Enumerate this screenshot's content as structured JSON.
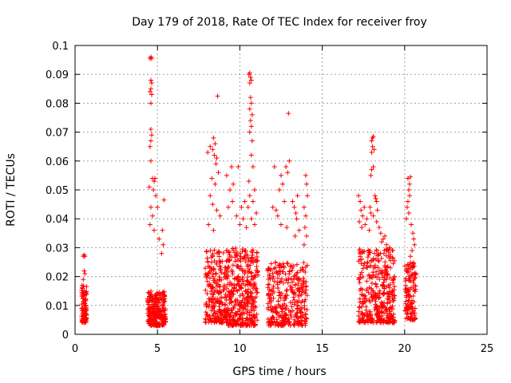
{
  "chart_data": {
    "type": "scatter",
    "title": "Day 179 of 2018, Rate Of TEC Index for receiver froy",
    "xlabel": "GPS time / hours",
    "ylabel": "ROTI / TECUs",
    "xlim": [
      0,
      25
    ],
    "ylim": [
      0,
      0.1
    ],
    "xticks": [
      0,
      5,
      10,
      15,
      20,
      25
    ],
    "yticks": [
      0,
      0.01,
      0.02,
      0.03,
      0.04,
      0.05,
      0.06,
      0.07,
      0.08,
      0.09,
      0.1
    ],
    "xtick_labels": [
      "0",
      "5",
      "10",
      "15",
      "20",
      "25"
    ],
    "ytick_labels": [
      "0",
      "0.01",
      "0.02",
      "0.03",
      "0.04",
      "0.05",
      "0.06",
      "0.07",
      "0.08",
      "0.09",
      "0.1"
    ],
    "grid": true,
    "marker": "+",
    "color": "#ff0000",
    "clusters": [
      {
        "x_range": [
          0.4,
          0.7
        ],
        "y_range": [
          0.004,
          0.017
        ],
        "count": 90
      },
      {
        "x_range": [
          4.4,
          5.5
        ],
        "y_range": [
          0.003,
          0.015
        ],
        "count": 240
      },
      {
        "x_range": [
          7.9,
          9.3
        ],
        "y_range": [
          0.004,
          0.03
        ],
        "count": 260
      },
      {
        "x_range": [
          9.3,
          11.1
        ],
        "y_range": [
          0.003,
          0.03
        ],
        "count": 360
      },
      {
        "x_range": [
          11.7,
          14.1
        ],
        "y_range": [
          0.003,
          0.025
        ],
        "count": 340
      },
      {
        "x_range": [
          17.2,
          19.4
        ],
        "y_range": [
          0.004,
          0.03
        ],
        "count": 380
      },
      {
        "x_range": [
          20.0,
          20.7
        ],
        "y_range": [
          0.005,
          0.025
        ],
        "count": 120
      }
    ],
    "points": [
      [
        0.5,
        0.027
      ],
      [
        0.55,
        0.0275
      ],
      [
        0.6,
        0.027
      ],
      [
        0.55,
        0.022
      ],
      [
        0.6,
        0.021
      ],
      [
        0.5,
        0.019
      ],
      [
        4.55,
        0.0955
      ],
      [
        4.6,
        0.096
      ],
      [
        4.65,
        0.0955
      ],
      [
        4.6,
        0.088
      ],
      [
        4.65,
        0.087
      ],
      [
        4.6,
        0.085
      ],
      [
        4.55,
        0.084
      ],
      [
        4.65,
        0.083
      ],
      [
        4.6,
        0.08
      ],
      [
        4.6,
        0.071
      ],
      [
        4.65,
        0.069
      ],
      [
        4.6,
        0.067
      ],
      [
        4.55,
        0.065
      ],
      [
        4.6,
        0.06
      ],
      [
        4.5,
        0.051
      ],
      [
        4.7,
        0.054
      ],
      [
        4.8,
        0.053
      ],
      [
        4.85,
        0.054
      ],
      [
        4.75,
        0.05
      ],
      [
        4.9,
        0.048
      ],
      [
        5.0,
        0.044
      ],
      [
        5.4,
        0.0465
      ],
      [
        5.3,
        0.036
      ],
      [
        5.35,
        0.031
      ],
      [
        4.6,
        0.044
      ],
      [
        4.7,
        0.041
      ],
      [
        4.55,
        0.038
      ],
      [
        4.8,
        0.036
      ],
      [
        5.1,
        0.033
      ],
      [
        5.25,
        0.028
      ],
      [
        8.05,
        0.063
      ],
      [
        8.2,
        0.065
      ],
      [
        8.35,
        0.064
      ],
      [
        8.4,
        0.068
      ],
      [
        8.5,
        0.066
      ],
      [
        8.55,
        0.059
      ],
      [
        8.45,
        0.062
      ],
      [
        8.6,
        0.061
      ],
      [
        8.65,
        0.0825
      ],
      [
        8.7,
        0.056
      ],
      [
        8.3,
        0.054
      ],
      [
        8.5,
        0.052
      ],
      [
        8.2,
        0.048
      ],
      [
        8.35,
        0.045
      ],
      [
        8.6,
        0.043
      ],
      [
        8.8,
        0.041
      ],
      [
        8.1,
        0.038
      ],
      [
        8.4,
        0.036
      ],
      [
        9.2,
        0.055
      ],
      [
        9.5,
        0.058
      ],
      [
        9.6,
        0.052
      ],
      [
        9.4,
        0.05
      ],
      [
        9.55,
        0.046
      ],
      [
        9.3,
        0.044
      ],
      [
        9.9,
        0.058
      ],
      [
        9.8,
        0.041
      ],
      [
        10.1,
        0.044
      ],
      [
        10.3,
        0.046
      ],
      [
        10.2,
        0.04
      ],
      [
        10.0,
        0.038
      ],
      [
        10.55,
        0.09
      ],
      [
        10.6,
        0.0905
      ],
      [
        10.65,
        0.089
      ],
      [
        10.7,
        0.088
      ],
      [
        10.6,
        0.087
      ],
      [
        10.65,
        0.082
      ],
      [
        10.7,
        0.08
      ],
      [
        10.6,
        0.078
      ],
      [
        10.75,
        0.076
      ],
      [
        10.65,
        0.074
      ],
      [
        10.7,
        0.072
      ],
      [
        10.6,
        0.07
      ],
      [
        10.75,
        0.067
      ],
      [
        10.7,
        0.062
      ],
      [
        10.8,
        0.058
      ],
      [
        10.55,
        0.053
      ],
      [
        10.9,
        0.05
      ],
      [
        10.6,
        0.048
      ],
      [
        10.8,
        0.046
      ],
      [
        10.5,
        0.044
      ],
      [
        11.0,
        0.042
      ],
      [
        10.7,
        0.04
      ],
      [
        10.9,
        0.038
      ],
      [
        10.4,
        0.037
      ],
      [
        12.0,
        0.044
      ],
      [
        12.2,
        0.043
      ],
      [
        12.1,
        0.058
      ],
      [
        12.5,
        0.055
      ],
      [
        12.6,
        0.052
      ],
      [
        12.8,
        0.058
      ],
      [
        12.9,
        0.056
      ],
      [
        13.0,
        0.06
      ],
      [
        12.95,
        0.0765
      ],
      [
        12.4,
        0.05
      ],
      [
        12.7,
        0.046
      ],
      [
        12.3,
        0.041
      ],
      [
        12.5,
        0.038
      ],
      [
        12.85,
        0.037
      ],
      [
        13.2,
        0.046
      ],
      [
        13.3,
        0.044
      ],
      [
        13.4,
        0.042
      ],
      [
        13.5,
        0.048
      ],
      [
        13.45,
        0.04
      ],
      [
        13.6,
        0.036
      ],
      [
        13.35,
        0.034
      ],
      [
        14.0,
        0.055
      ],
      [
        14.05,
        0.052
      ],
      [
        14.1,
        0.048
      ],
      [
        13.9,
        0.044
      ],
      [
        14.0,
        0.041
      ],
      [
        13.95,
        0.037
      ],
      [
        14.05,
        0.034
      ],
      [
        13.9,
        0.031
      ],
      [
        17.2,
        0.048
      ],
      [
        17.3,
        0.046
      ],
      [
        17.35,
        0.043
      ],
      [
        17.45,
        0.041
      ],
      [
        17.25,
        0.039
      ],
      [
        17.4,
        0.037
      ],
      [
        17.55,
        0.044
      ],
      [
        17.7,
        0.04
      ],
      [
        17.6,
        0.038
      ],
      [
        17.85,
        0.036
      ],
      [
        17.9,
        0.044
      ],
      [
        17.95,
        0.042
      ],
      [
        17.95,
        0.055
      ],
      [
        18.0,
        0.057
      ],
      [
        18.1,
        0.058
      ],
      [
        18.0,
        0.063
      ],
      [
        18.05,
        0.065
      ],
      [
        18.0,
        0.067
      ],
      [
        18.05,
        0.068
      ],
      [
        18.1,
        0.0685
      ],
      [
        18.15,
        0.064
      ],
      [
        18.2,
        0.048
      ],
      [
        18.25,
        0.047
      ],
      [
        18.3,
        0.046
      ],
      [
        18.35,
        0.043
      ],
      [
        18.1,
        0.041
      ],
      [
        18.3,
        0.039
      ],
      [
        18.45,
        0.037
      ],
      [
        18.55,
        0.035
      ],
      [
        18.7,
        0.033
      ],
      [
        18.9,
        0.031
      ],
      [
        19.1,
        0.03
      ],
      [
        19.25,
        0.029
      ],
      [
        18.6,
        0.032
      ],
      [
        18.8,
        0.034
      ],
      [
        20.1,
        0.04
      ],
      [
        20.15,
        0.044
      ],
      [
        20.2,
        0.046
      ],
      [
        20.25,
        0.05
      ],
      [
        20.3,
        0.052
      ],
      [
        20.2,
        0.054
      ],
      [
        20.35,
        0.0545
      ],
      [
        20.3,
        0.048
      ],
      [
        20.25,
        0.042
      ],
      [
        20.4,
        0.038
      ],
      [
        20.5,
        0.035
      ],
      [
        20.55,
        0.033
      ],
      [
        20.6,
        0.031
      ],
      [
        20.45,
        0.029
      ],
      [
        20.35,
        0.027
      ]
    ]
  }
}
